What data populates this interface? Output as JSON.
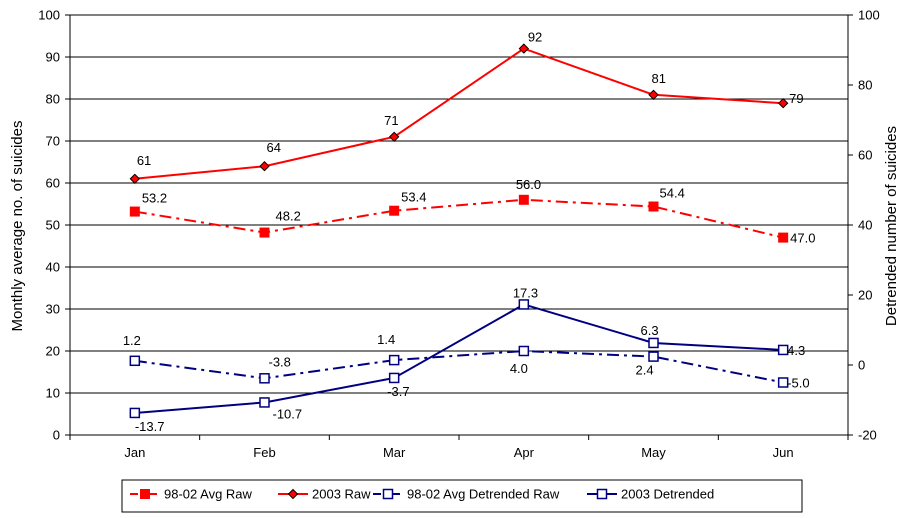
{
  "chart_data": {
    "type": "line",
    "categories": [
      "Jan",
      "Feb",
      "Mar",
      "Apr",
      "May",
      "Jun"
    ],
    "y_left": {
      "label": "Monthly average no. of suicides",
      "range": [
        0,
        100
      ],
      "ticks": [
        "0",
        "10",
        "20",
        "30",
        "40",
        "50",
        "60",
        "70",
        "80",
        "90",
        "100"
      ]
    },
    "y_right": {
      "label": "Detrended number of suicides",
      "range": [
        -20,
        100
      ],
      "ticks": [
        "-20",
        "0",
        "20",
        "40",
        "60",
        "80",
        "100"
      ]
    },
    "grid": "horizontal",
    "legend_position": "bottom",
    "series": [
      {
        "name": "98-02 Avg Raw",
        "axis": "left",
        "color": "#ff0000",
        "line": "dashdot",
        "marker": "filled-square",
        "values": [
          53.2,
          48.2,
          53.4,
          56.0,
          54.4,
          47.0
        ],
        "labels": [
          "53.2",
          "48.2",
          "53.4",
          "56.0",
          "54.4",
          "47.0"
        ]
      },
      {
        "name": "2003 Raw",
        "axis": "left",
        "color": "#ff0000",
        "line": "solid",
        "marker": "diamond",
        "values": [
          61,
          64,
          71,
          92,
          81,
          79
        ],
        "labels": [
          "61",
          "64",
          "71",
          "92",
          "81",
          "79"
        ]
      },
      {
        "name": "98-02 Avg Detrended Raw",
        "axis": "right",
        "color": "#000080",
        "line": "dashdot",
        "marker": "open-square",
        "values": [
          1.2,
          -3.8,
          1.4,
          4.0,
          2.4,
          -5.0
        ],
        "labels": [
          "1.2",
          "-3.8",
          "1.4",
          "4.0",
          "2.4",
          "-5.0"
        ]
      },
      {
        "name": "2003 Detrended",
        "axis": "right",
        "color": "#000080",
        "line": "solid",
        "marker": "open-square",
        "values": [
          -13.7,
          -10.7,
          -3.7,
          17.3,
          6.3,
          4.3
        ],
        "labels": [
          "-13.7",
          "-10.7",
          "-3.7",
          "17.3",
          "6.3",
          "4.3"
        ]
      }
    ]
  }
}
